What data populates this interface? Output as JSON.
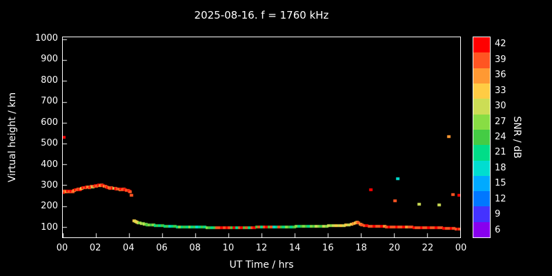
{
  "title": "2025-08-16. f = 1760 kHz",
  "colors": {
    "background": "#000000",
    "foreground": "#ffffff",
    "axis": "#ffffff"
  },
  "chart_data": {
    "type": "scatter",
    "title": "2025-08-16. f = 1760 kHz",
    "x_axis": {
      "label": "UT Time / hrs",
      "min": 0,
      "max": 24,
      "tick_values": [
        0,
        2,
        4,
        6,
        8,
        10,
        12,
        14,
        16,
        18,
        20,
        22,
        24
      ],
      "tick_labels": [
        "00",
        "02",
        "04",
        "06",
        "08",
        "10",
        "12",
        "14",
        "16",
        "18",
        "20",
        "22",
        "00"
      ]
    },
    "y_axis": {
      "label": "Virtual height / km",
      "min": 50,
      "max": 1010,
      "tick_values": [
        100,
        200,
        300,
        400,
        500,
        600,
        700,
        800,
        900,
        1000
      ],
      "tick_labels": [
        "100",
        "200",
        "300",
        "400",
        "500",
        "600",
        "700",
        "800",
        "900",
        "1000"
      ]
    },
    "colorbar": {
      "label": "SNR / dB",
      "min": 4.5,
      "max": 43.5,
      "bin_size": 3,
      "tick_values": [
        6,
        9,
        12,
        15,
        18,
        21,
        24,
        27,
        30,
        33,
        36,
        39,
        42
      ],
      "bin_colors": [
        "#8800ee",
        "#4433ff",
        "#0077ff",
        "#00aaff",
        "#00ddd0",
        "#00dd88",
        "#44cc44",
        "#88dd44",
        "#ccdd55",
        "#ffcc44",
        "#ff9933",
        "#ff5522",
        "#ff0000"
      ]
    },
    "points": [
      [
        0.0,
        265,
        41
      ],
      [
        0.05,
        530,
        41
      ],
      [
        0.08,
        272,
        39
      ],
      [
        0.15,
        268,
        40
      ],
      [
        0.22,
        270,
        36
      ],
      [
        0.3,
        272,
        41
      ],
      [
        0.38,
        268,
        40
      ],
      [
        0.45,
        270,
        39
      ],
      [
        0.52,
        273,
        41
      ],
      [
        0.6,
        270,
        40
      ],
      [
        0.68,
        275,
        36
      ],
      [
        0.75,
        278,
        41
      ],
      [
        0.82,
        280,
        40
      ],
      [
        0.9,
        282,
        39
      ],
      [
        0.98,
        280,
        41
      ],
      [
        1.05,
        283,
        40
      ],
      [
        1.12,
        285,
        33
      ],
      [
        1.2,
        288,
        41
      ],
      [
        1.28,
        290,
        40
      ],
      [
        1.35,
        287,
        39
      ],
      [
        1.42,
        291,
        41
      ],
      [
        1.5,
        293,
        36
      ],
      [
        1.58,
        290,
        40
      ],
      [
        1.65,
        293,
        41
      ],
      [
        1.72,
        295,
        39
      ],
      [
        1.8,
        292,
        30
      ],
      [
        1.88,
        295,
        40
      ],
      [
        1.95,
        297,
        41
      ],
      [
        2.02,
        295,
        40
      ],
      [
        2.1,
        298,
        39
      ],
      [
        2.18,
        300,
        41
      ],
      [
        2.25,
        298,
        36
      ],
      [
        2.32,
        300,
        40
      ],
      [
        2.4,
        297,
        41
      ],
      [
        2.48,
        295,
        33
      ],
      [
        2.55,
        296,
        40
      ],
      [
        2.62,
        292,
        39
      ],
      [
        2.7,
        290,
        41
      ],
      [
        2.78,
        288,
        36
      ],
      [
        2.85,
        286,
        40
      ],
      [
        2.92,
        288,
        39
      ],
      [
        3.0,
        286,
        41
      ],
      [
        3.08,
        284,
        30
      ],
      [
        3.15,
        286,
        40
      ],
      [
        3.22,
        283,
        41
      ],
      [
        3.3,
        281,
        39
      ],
      [
        3.38,
        283,
        40
      ],
      [
        3.45,
        280,
        36
      ],
      [
        3.52,
        282,
        41
      ],
      [
        3.6,
        279,
        40
      ],
      [
        3.68,
        281,
        39
      ],
      [
        3.75,
        278,
        41
      ],
      [
        3.82,
        276,
        40
      ],
      [
        3.9,
        274,
        39
      ],
      [
        3.98,
        272,
        41
      ],
      [
        4.05,
        268,
        40
      ],
      [
        4.12,
        252,
        39
      ],
      [
        4.3,
        130,
        33
      ],
      [
        4.38,
        127,
        30
      ],
      [
        4.46,
        124,
        33
      ],
      [
        4.55,
        121,
        30
      ],
      [
        4.64,
        119,
        27
      ],
      [
        4.73,
        117,
        30
      ],
      [
        4.82,
        115,
        27
      ],
      [
        4.91,
        113,
        30
      ],
      [
        5.0,
        112,
        27
      ],
      [
        5.1,
        111,
        24
      ],
      [
        5.2,
        110,
        27
      ],
      [
        5.32,
        109,
        24
      ],
      [
        5.45,
        108,
        27
      ],
      [
        5.58,
        107,
        21
      ],
      [
        5.7,
        106,
        24
      ],
      [
        5.85,
        105,
        21
      ],
      [
        6.0,
        105,
        24
      ],
      [
        6.15,
        104,
        21
      ],
      [
        6.3,
        103,
        24
      ],
      [
        6.45,
        103,
        18
      ],
      [
        6.6,
        102,
        21
      ],
      [
        6.75,
        102,
        24
      ],
      [
        6.9,
        101,
        21
      ],
      [
        7.05,
        101,
        27
      ],
      [
        7.2,
        101,
        21
      ],
      [
        7.35,
        100,
        24
      ],
      [
        7.5,
        100,
        21
      ],
      [
        7.65,
        100,
        27
      ],
      [
        7.8,
        100,
        21
      ],
      [
        7.95,
        100,
        24
      ],
      [
        8.1,
        99,
        18
      ],
      [
        8.25,
        99,
        21
      ],
      [
        8.4,
        99,
        24
      ],
      [
        8.55,
        99,
        21
      ],
      [
        8.7,
        98,
        27
      ],
      [
        8.85,
        98,
        24
      ],
      [
        9.0,
        98,
        21
      ],
      [
        9.15,
        98,
        24
      ],
      [
        9.3,
        97,
        40
      ],
      [
        9.45,
        97,
        39
      ],
      [
        9.6,
        96,
        41
      ],
      [
        9.75,
        96,
        39
      ],
      [
        9.9,
        95,
        41
      ],
      [
        10.05,
        95,
        40
      ],
      [
        10.2,
        95,
        24
      ],
      [
        10.35,
        96,
        41
      ],
      [
        10.5,
        96,
        21
      ],
      [
        10.65,
        97,
        39
      ],
      [
        10.8,
        97,
        41
      ],
      [
        10.95,
        97,
        24
      ],
      [
        11.1,
        98,
        40
      ],
      [
        11.25,
        98,
        21
      ],
      [
        11.4,
        98,
        39
      ],
      [
        11.55,
        98,
        41
      ],
      [
        11.7,
        99,
        24
      ],
      [
        11.85,
        99,
        40
      ],
      [
        12.0,
        99,
        21
      ],
      [
        12.15,
        99,
        39
      ],
      [
        12.3,
        100,
        41
      ],
      [
        12.45,
        100,
        24
      ],
      [
        12.6,
        100,
        40
      ],
      [
        12.75,
        100,
        18
      ],
      [
        12.9,
        100,
        21
      ],
      [
        13.05,
        100,
        39
      ],
      [
        13.2,
        100,
        24
      ],
      [
        13.35,
        101,
        21
      ],
      [
        13.5,
        101,
        27
      ],
      [
        13.65,
        101,
        24
      ],
      [
        13.8,
        101,
        21
      ],
      [
        13.95,
        101,
        24
      ],
      [
        14.1,
        102,
        27
      ],
      [
        14.25,
        102,
        21
      ],
      [
        14.4,
        102,
        24
      ],
      [
        14.55,
        102,
        27
      ],
      [
        14.7,
        102,
        24
      ],
      [
        14.85,
        103,
        21
      ],
      [
        15.0,
        103,
        27
      ],
      [
        15.15,
        103,
        24
      ],
      [
        15.3,
        103,
        30
      ],
      [
        15.45,
        104,
        27
      ],
      [
        15.6,
        104,
        24
      ],
      [
        15.75,
        104,
        30
      ],
      [
        15.9,
        104,
        27
      ],
      [
        16.05,
        105,
        30
      ],
      [
        16.2,
        105,
        27
      ],
      [
        16.35,
        105,
        30
      ],
      [
        16.5,
        106,
        33
      ],
      [
        16.65,
        106,
        30
      ],
      [
        16.8,
        107,
        33
      ],
      [
        16.95,
        107,
        30
      ],
      [
        17.1,
        108,
        33
      ],
      [
        17.25,
        110,
        30
      ],
      [
        17.4,
        113,
        33
      ],
      [
        17.55,
        117,
        36
      ],
      [
        17.65,
        121,
        33
      ],
      [
        17.75,
        122,
        36
      ],
      [
        17.85,
        118,
        39
      ],
      [
        17.95,
        112,
        36
      ],
      [
        18.05,
        108,
        40
      ],
      [
        18.2,
        106,
        39
      ],
      [
        18.35,
        105,
        41
      ],
      [
        18.5,
        104,
        40
      ],
      [
        18.65,
        104,
        39
      ],
      [
        18.8,
        103,
        41
      ],
      [
        18.95,
        103,
        40
      ],
      [
        19.1,
        102,
        39
      ],
      [
        19.25,
        102,
        41
      ],
      [
        19.4,
        102,
        36
      ],
      [
        19.55,
        101,
        40
      ],
      [
        19.7,
        101,
        41
      ],
      [
        19.85,
        101,
        39
      ],
      [
        20.0,
        100,
        40
      ],
      [
        20.15,
        100,
        41
      ],
      [
        20.3,
        100,
        39
      ],
      [
        20.45,
        100,
        40
      ],
      [
        20.6,
        99,
        41
      ],
      [
        20.75,
        99,
        36
      ],
      [
        20.9,
        99,
        40
      ],
      [
        21.05,
        99,
        39
      ],
      [
        21.2,
        98,
        41
      ],
      [
        21.35,
        98,
        40
      ],
      [
        21.5,
        98,
        39
      ],
      [
        21.65,
        98,
        41
      ],
      [
        21.8,
        97,
        40
      ],
      [
        21.95,
        97,
        39
      ],
      [
        22.1,
        97,
        41
      ],
      [
        22.25,
        96,
        40
      ],
      [
        22.4,
        96,
        39
      ],
      [
        22.55,
        96,
        41
      ],
      [
        22.7,
        95,
        40
      ],
      [
        22.85,
        95,
        39
      ],
      [
        23.0,
        94,
        41
      ],
      [
        23.15,
        94,
        40
      ],
      [
        23.3,
        93,
        39
      ],
      [
        23.45,
        93,
        41
      ],
      [
        23.6,
        92,
        40
      ],
      [
        23.75,
        91,
        39
      ],
      [
        23.88,
        90,
        41
      ],
      [
        23.97,
        90,
        40
      ],
      [
        18.6,
        277,
        41
      ],
      [
        20.2,
        333,
        19
      ],
      [
        20.05,
        225,
        40
      ],
      [
        21.5,
        208,
        30
      ],
      [
        22.7,
        205,
        30
      ],
      [
        23.3,
        533,
        36
      ],
      [
        23.55,
        255,
        40
      ],
      [
        23.92,
        252,
        41
      ]
    ]
  }
}
